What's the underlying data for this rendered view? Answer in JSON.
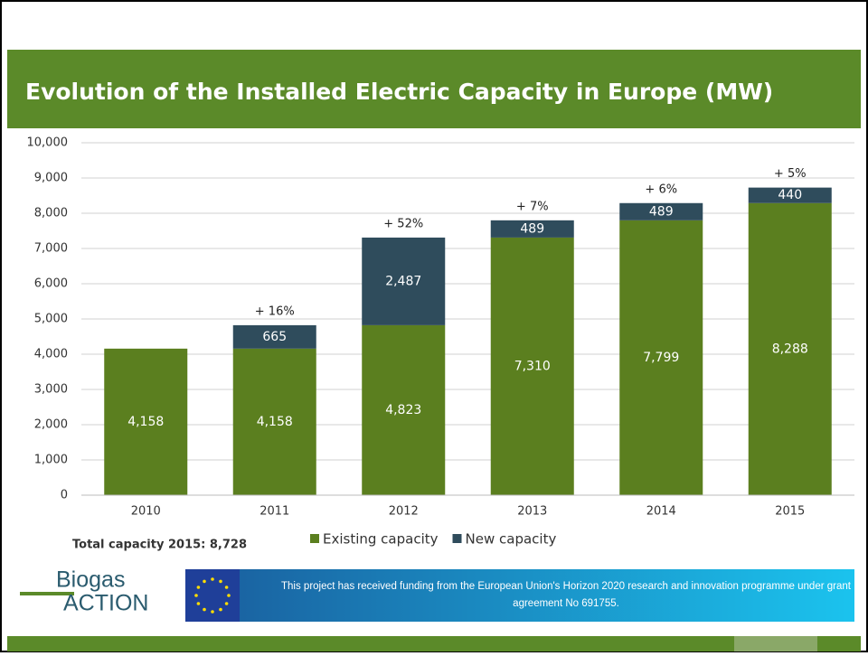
{
  "chart_data": {
    "type": "stacked_bar",
    "title": "Evolution of the Installed Electric Capacity in Europe (MW)",
    "categories": [
      "2010",
      "2011",
      "2012",
      "2013",
      "2014",
      "2015"
    ],
    "series": [
      {
        "name": "Existing capacity",
        "color": "#5b7f1f",
        "values": [
          4158,
          4158,
          4823,
          7310,
          7799,
          8288
        ],
        "value_labels": [
          "4,158",
          "4,158",
          "4,823",
          "7,310",
          "7,799",
          "8,288"
        ]
      },
      {
        "name": "New capacity",
        "color": "#2f4c5c",
        "values": [
          null,
          665,
          2487,
          489,
          489,
          440
        ],
        "value_labels": [
          null,
          "665",
          "2,487",
          "489",
          "489",
          "440"
        ]
      }
    ],
    "growth_labels": [
      null,
      "+ 16%",
      "+ 52%",
      "+ 7%",
      "+ 6%",
      "+ 5%"
    ],
    "ylim": [
      0,
      10000
    ],
    "yticks": [
      0,
      {
        "value": 1000,
        "label": "1,000"
      },
      {
        "value": 2000,
        "label": "2,000"
      },
      {
        "value": 3000,
        "label": "3,000"
      },
      {
        "value": 4000,
        "label": "4,000"
      },
      {
        "value": 5000,
        "label": "5,000"
      },
      {
        "value": 6000,
        "label": "6,000"
      },
      {
        "value": 7000,
        "label": "7,000"
      },
      {
        "value": 8000,
        "label": "8,000"
      },
      {
        "value": 9000,
        "label": "9,000"
      },
      {
        "value": 10000,
        "label": "10,000"
      }
    ],
    "grid": true,
    "legend": "bottom",
    "total_note": "Total capacity 2015: 8,728"
  },
  "footer": {
    "logo_top": "Biogas",
    "logo_bottom": "ACTION",
    "funding_line1": "This project has received funding from the European Union's Horizon 2020 research and innovation programme under grant",
    "funding_line2": "agreement No 691755."
  }
}
